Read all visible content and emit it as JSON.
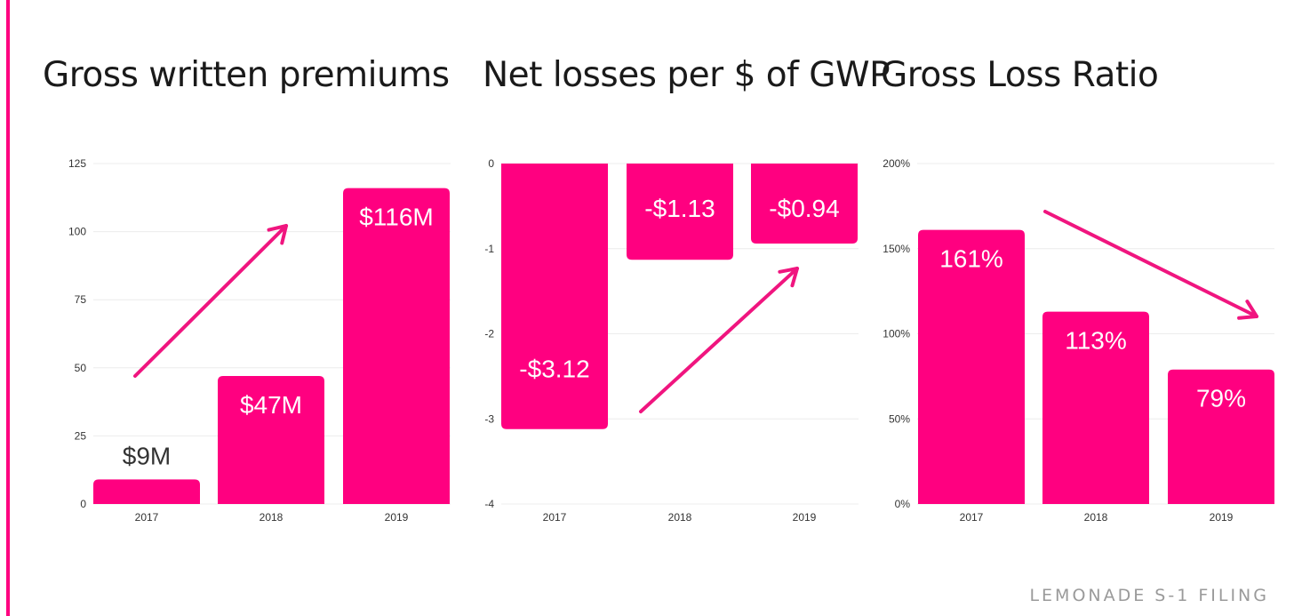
{
  "colors": {
    "accent": "#ff0080",
    "grid": "#ececec",
    "text": "#1a1a1a",
    "footer": "#9a9a9a",
    "arrow": "#f0157f"
  },
  "footer": "LEMONADE S-1 FILING",
  "chart_data": [
    {
      "type": "bar",
      "title": "Gross written premiums",
      "categories": [
        "2017",
        "2018",
        "2019"
      ],
      "values": [
        9,
        47,
        116
      ],
      "data_labels": [
        "$9M",
        "$47M",
        "$116M"
      ],
      "ylim": [
        0,
        125
      ],
      "yticks": [
        0,
        25,
        50,
        75,
        100,
        125
      ],
      "ytick_labels": [
        "0",
        "25",
        "50",
        "75",
        "100",
        "125"
      ],
      "trend_arrow": "up",
      "grid": true
    },
    {
      "type": "bar",
      "title": "Net losses per $ of GWP",
      "categories": [
        "2017",
        "2018",
        "2019"
      ],
      "values": [
        -3.12,
        -1.13,
        -0.94
      ],
      "data_labels": [
        "-$3.12",
        "-$1.13",
        "-$0.94"
      ],
      "ylim": [
        -4,
        0
      ],
      "yticks": [
        0,
        -1,
        -2,
        -3,
        -4
      ],
      "ytick_labels": [
        "0",
        "-1",
        "-2",
        "-3",
        "-4"
      ],
      "trend_arrow": "up",
      "grid": true
    },
    {
      "type": "bar",
      "title": "Gross Loss Ratio",
      "categories": [
        "2017",
        "2018",
        "2019"
      ],
      "values": [
        161,
        113,
        79
      ],
      "data_labels": [
        "161%",
        "113%",
        "79%"
      ],
      "ylim": [
        0,
        200
      ],
      "yticks": [
        0,
        50,
        100,
        150,
        200
      ],
      "ytick_labels": [
        "0%",
        "50%",
        "100%",
        "150%",
        "200%"
      ],
      "trend_arrow": "down",
      "grid": true
    }
  ]
}
